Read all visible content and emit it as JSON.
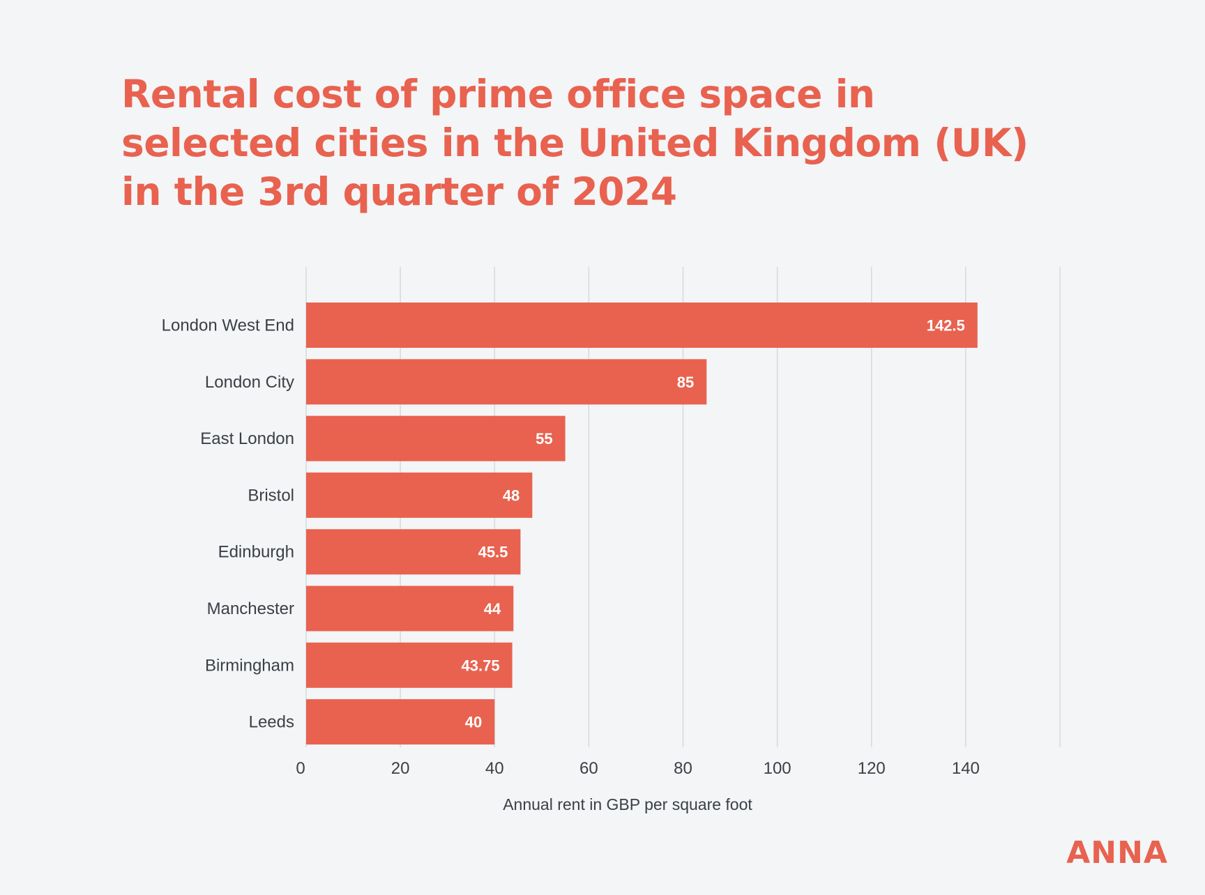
{
  "chart_data": {
    "type": "bar",
    "orientation": "horizontal",
    "title": "Rental cost of prime office space in selected cities in the United Kingdom (UK) in the 3rd quarter of 2024",
    "categories": [
      "London West End",
      "London City",
      "East London",
      "Bristol",
      "Edinburgh",
      "Manchester",
      "Birmingham",
      "Leeds"
    ],
    "values": [
      142.5,
      85,
      55,
      48,
      45.5,
      44,
      43.75,
      40
    ],
    "value_labels": [
      "142.5",
      "85",
      "55",
      "48",
      "45.5",
      "44",
      "43.75",
      "40"
    ],
    "xlabel": "Annual rent in GBP per square foot",
    "ylabel": "",
    "xlim": [
      0,
      160
    ],
    "x_ticks": [
      0,
      20,
      40,
      60,
      80,
      100,
      120,
      140
    ],
    "grid": true,
    "legend": "none",
    "colors": {
      "bar": "#e8624f",
      "title": "#e8624f",
      "grid": "#d6d9dd",
      "background": "#f3f5f7",
      "text": "#3b3f45"
    }
  },
  "branding": {
    "logo_text": "ANNA"
  }
}
